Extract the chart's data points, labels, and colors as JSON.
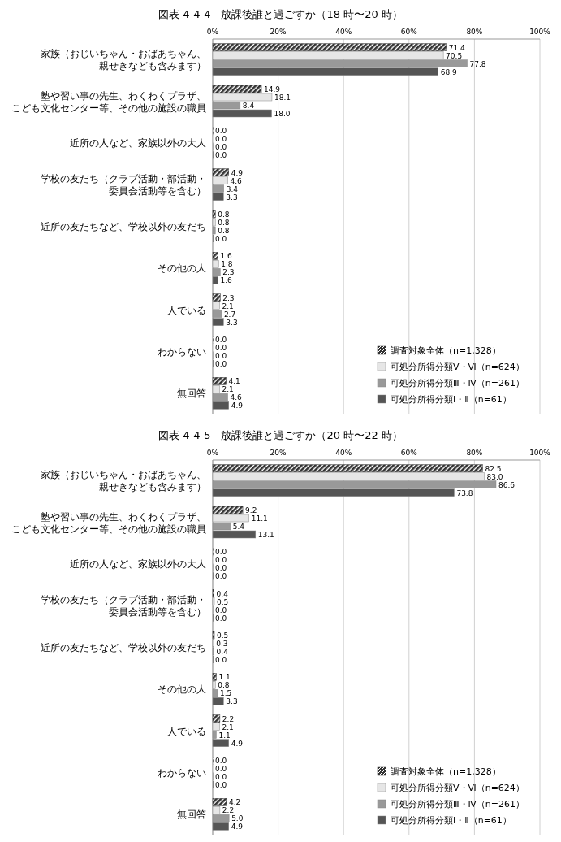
{
  "chart_data": [
    {
      "type": "bar",
      "orientation": "horizontal",
      "title": "図表 4-4-4　放課後誰と過ごすか（18 時〜20 時）",
      "categories": [
        "家族（おじいちゃん・おばあちゃん、親せきなども含みます）",
        "塾や習い事の先生、わくわくプラザ、こども文化センター等、その他の施設の職員",
        "近所の人など、家族以外の大人",
        "学校の友だち（クラブ活動・部活動・委員会活動等を含む）",
        "近所の友だちなど、学校以外の友だち",
        "その他の人",
        "一人でいる",
        "わからない",
        "無回答"
      ],
      "xlim": [
        0,
        100
      ],
      "xticks": [
        {
          "value": 0,
          "label": "0%"
        },
        {
          "value": 20,
          "label": "20%"
        },
        {
          "value": 40,
          "label": "40%"
        },
        {
          "value": 60,
          "label": "60%"
        },
        {
          "value": 80,
          "label": "80%"
        },
        {
          "value": 100,
          "label": "100%"
        }
      ],
      "grid": "x",
      "legend": "bottom right",
      "series": [
        {
          "name": "調査対象全体（n=1,328）",
          "color": "#333333",
          "values": [
            71.4,
            14.9,
            0.0,
            4.9,
            0.8,
            1.6,
            2.3,
            0.0,
            4.1
          ],
          "value_labels": [
            "71.4",
            "14.9",
            "0.0",
            "4.9",
            "0.8",
            "1.6",
            "2.3",
            "0.0",
            "4.1"
          ]
        },
        {
          "name": "可処分所得分類Ⅴ・Ⅵ（n=624）",
          "color": "#e6e6e6",
          "values": [
            70.5,
            18.1,
            0.0,
            4.6,
            0.8,
            1.8,
            2.1,
            0.0,
            2.1
          ],
          "value_labels": [
            "70.5",
            "18.1",
            "0.0",
            "4.6",
            "0.8",
            "1.8",
            "2.1",
            "0.0",
            "2.1"
          ]
        },
        {
          "name": "可処分所得分類Ⅲ・Ⅳ（n=261）",
          "color": "#999999",
          "values": [
            77.8,
            8.4,
            0.0,
            3.4,
            0.8,
            2.3,
            2.7,
            0.0,
            4.6
          ],
          "value_labels": [
            "77.8",
            "8.4",
            "0.0",
            "3.4",
            "0.8",
            "2.3",
            "2.7",
            "0.0",
            "4.6"
          ]
        },
        {
          "name": "可処分所得分類Ⅰ・Ⅱ（n=61）",
          "color": "#555555",
          "values": [
            68.9,
            18.0,
            0.0,
            3.3,
            0.0,
            1.6,
            3.3,
            0.0,
            4.9
          ],
          "value_labels": [
            "68.9",
            "18.0",
            "0.0",
            "3.3",
            "0.0",
            "1.6",
            "3.3",
            "0.0",
            "4.9"
          ]
        }
      ]
    },
    {
      "type": "bar",
      "orientation": "horizontal",
      "title": "図表 4-4-5　放課後誰と過ごすか（20 時〜22 時）",
      "categories": [
        "家族（おじいちゃん・おばあちゃん、親せきなども含みます）",
        "塾や習い事の先生、わくわくプラザ、こども文化センター等、その他の施設の職員",
        "近所の人など、家族以外の大人",
        "学校の友だち（クラブ活動・部活動・委員会活動等を含む）",
        "近所の友だちなど、学校以外の友だち",
        "その他の人",
        "一人でいる",
        "わからない",
        "無回答"
      ],
      "xlim": [
        0,
        100
      ],
      "xticks": [
        {
          "value": 0,
          "label": "0%"
        },
        {
          "value": 20,
          "label": "20%"
        },
        {
          "value": 40,
          "label": "40%"
        },
        {
          "value": 60,
          "label": "60%"
        },
        {
          "value": 80,
          "label": "80%"
        },
        {
          "value": 100,
          "label": "100%"
        }
      ],
      "grid": "x",
      "legend": "bottom right",
      "series": [
        {
          "name": "調査対象全体（n=1,328）",
          "color": "#333333",
          "values": [
            82.5,
            9.2,
            0.0,
            0.4,
            0.5,
            1.1,
            2.2,
            0.0,
            4.2
          ],
          "value_labels": [
            "82.5",
            "9.2",
            "0.0",
            "0.4",
            "0.5",
            "1.1",
            "2.2",
            "0.0",
            "4.2"
          ]
        },
        {
          "name": "可処分所得分類Ⅴ・Ⅵ（n=624）",
          "color": "#e6e6e6",
          "values": [
            83.0,
            11.1,
            0.0,
            0.5,
            0.3,
            0.8,
            2.1,
            0.0,
            2.2
          ],
          "value_labels": [
            "83.0",
            "11.1",
            "0.0",
            "0.5",
            "0.3",
            "0.8",
            "2.1",
            "0.0",
            "2.2"
          ]
        },
        {
          "name": "可処分所得分類Ⅲ・Ⅳ（n=261）",
          "color": "#999999",
          "values": [
            86.6,
            5.4,
            0.0,
            0.0,
            0.4,
            1.5,
            1.1,
            0.0,
            5.0
          ],
          "value_labels": [
            "86.6",
            "5.4",
            "0.0",
            "0.0",
            "0.4",
            "1.5",
            "1.1",
            "0.0",
            "5.0"
          ]
        },
        {
          "name": "可処分所得分類Ⅰ・Ⅱ（n=61）",
          "color": "#555555",
          "values": [
            73.8,
            13.1,
            0.0,
            0.0,
            0.0,
            3.3,
            4.9,
            0.0,
            4.9
          ],
          "value_labels": [
            "73.8",
            "13.1",
            "0.0",
            "0.0",
            "0.0",
            "3.3",
            "4.9",
            "0.0",
            "4.9"
          ]
        }
      ]
    }
  ]
}
